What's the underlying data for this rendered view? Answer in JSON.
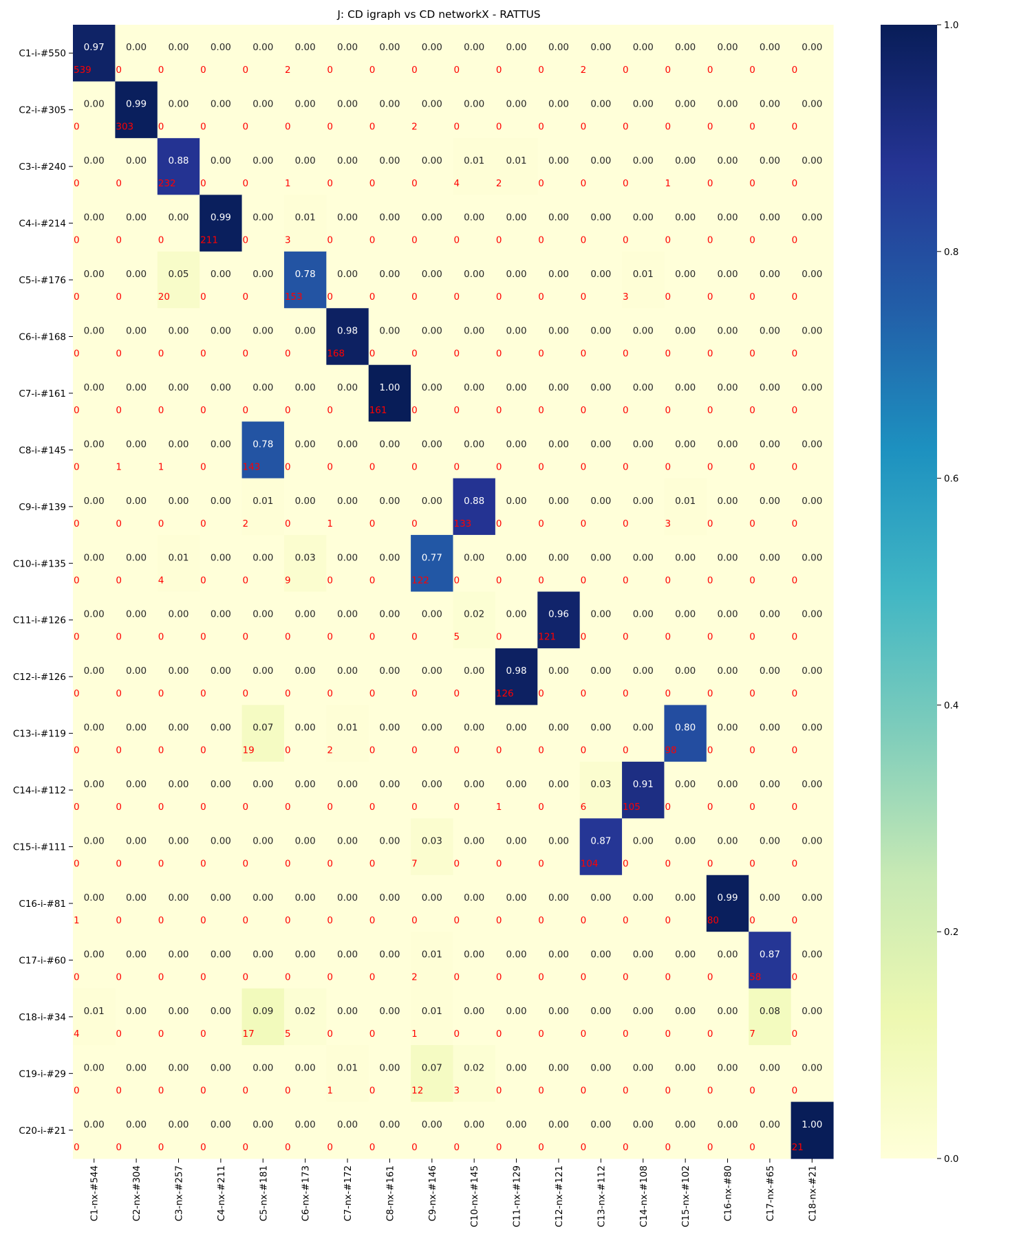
{
  "chart_data": {
    "type": "heatmap",
    "title": "J: CD igraph vs CD networkX - RATTUS",
    "rows": [
      "C1-i-#550",
      "C2-i-#305",
      "C3-i-#240",
      "C4-i-#214",
      "C5-i-#176",
      "C6-i-#168",
      "C7-i-#161",
      "C8-i-#145",
      "C9-i-#139",
      "C10-i-#135",
      "C11-i-#126",
      "C12-i-#126",
      "C13-i-#119",
      "C14-i-#112",
      "C15-i-#111",
      "C16-i-#81",
      "C17-i-#60",
      "C18-i-#34",
      "C19-i-#29",
      "C20-i-#21"
    ],
    "columns": [
      "C1-nx-#544",
      "C2-nx-#304",
      "C3-nx-#257",
      "C4-nx-#211",
      "C5-nx-#181",
      "C6-nx-#173",
      "C7-nx-#172",
      "C8-nx-#161",
      "C9-nx-#146",
      "C10-nx-#145",
      "C11-nx-#129",
      "C12-nx-#121",
      "C13-nx-#112",
      "C14-nx-#108",
      "C15-nx-#102",
      "C16-nx-#80",
      "C17-nx-#65",
      "C18-nx-#21"
    ],
    "values": [
      [
        0.97,
        0,
        0,
        0,
        0,
        0,
        0,
        0,
        0,
        0,
        0,
        0,
        0,
        0,
        0,
        0,
        0,
        0
      ],
      [
        0,
        0.99,
        0,
        0,
        0,
        0,
        0,
        0,
        0,
        0,
        0,
        0,
        0,
        0,
        0,
        0,
        0,
        0
      ],
      [
        0,
        0,
        0.88,
        0,
        0,
        0,
        0,
        0,
        0,
        0.01,
        0.01,
        0,
        0,
        0,
        0,
        0,
        0,
        0
      ],
      [
        0,
        0,
        0,
        0.99,
        0,
        0.01,
        0,
        0,
        0,
        0,
        0,
        0,
        0,
        0,
        0,
        0,
        0,
        0
      ],
      [
        0,
        0,
        0.05,
        0,
        0,
        0.78,
        0,
        0,
        0,
        0,
        0,
        0,
        0,
        0.01,
        0,
        0,
        0,
        0
      ],
      [
        0,
        0,
        0,
        0,
        0,
        0,
        0.98,
        0,
        0,
        0,
        0,
        0,
        0,
        0,
        0,
        0,
        0,
        0
      ],
      [
        0,
        0,
        0,
        0,
        0,
        0,
        0,
        1.0,
        0,
        0,
        0,
        0,
        0,
        0,
        0,
        0,
        0,
        0
      ],
      [
        0,
        0,
        0,
        0,
        0.78,
        0,
        0,
        0,
        0,
        0,
        0,
        0,
        0,
        0,
        0,
        0,
        0,
        0
      ],
      [
        0,
        0,
        0,
        0,
        0.01,
        0,
        0,
        0,
        0,
        0.88,
        0,
        0,
        0,
        0,
        0.01,
        0,
        0,
        0
      ],
      [
        0,
        0,
        0.01,
        0,
        0,
        0.03,
        0,
        0,
        0.77,
        0,
        0,
        0,
        0,
        0,
        0,
        0,
        0,
        0
      ],
      [
        0,
        0,
        0,
        0,
        0,
        0,
        0,
        0,
        0,
        0.02,
        0,
        0.96,
        0,
        0,
        0,
        0,
        0,
        0
      ],
      [
        0,
        0,
        0,
        0,
        0,
        0,
        0,
        0,
        0,
        0,
        0.98,
        0,
        0,
        0,
        0,
        0,
        0,
        0
      ],
      [
        0,
        0,
        0,
        0,
        0.07,
        0,
        0.01,
        0,
        0,
        0,
        0,
        0,
        0,
        0,
        0.8,
        0,
        0,
        0
      ],
      [
        0,
        0,
        0,
        0,
        0,
        0,
        0,
        0,
        0,
        0,
        0,
        0,
        0.03,
        0.91,
        0,
        0,
        0,
        0
      ],
      [
        0,
        0,
        0,
        0,
        0,
        0,
        0,
        0,
        0.03,
        0,
        0,
        0,
        0.87,
        0,
        0,
        0,
        0,
        0
      ],
      [
        0,
        0,
        0,
        0,
        0,
        0,
        0,
        0,
        0,
        0,
        0,
        0,
        0,
        0,
        0,
        0.99,
        0,
        0
      ],
      [
        0,
        0,
        0,
        0,
        0,
        0,
        0,
        0,
        0.01,
        0,
        0,
        0,
        0,
        0,
        0,
        0,
        0.87,
        0
      ],
      [
        0.01,
        0,
        0,
        0,
        0.09,
        0.02,
        0,
        0,
        0.01,
        0,
        0,
        0,
        0,
        0,
        0,
        0,
        0.08,
        0
      ],
      [
        0,
        0,
        0,
        0,
        0,
        0,
        0.01,
        0,
        0.07,
        0.02,
        0,
        0,
        0,
        0,
        0,
        0,
        0,
        0
      ],
      [
        0,
        0,
        0,
        0,
        0,
        0,
        0,
        0,
        0,
        0,
        0,
        0,
        0,
        0,
        0,
        0,
        0,
        1.0
      ]
    ],
    "counts": [
      [
        539,
        0,
        0,
        0,
        0,
        2,
        0,
        0,
        0,
        0,
        0,
        0,
        2,
        0,
        0,
        0,
        0,
        0
      ],
      [
        0,
        303,
        0,
        0,
        0,
        0,
        0,
        0,
        2,
        0,
        0,
        0,
        0,
        0,
        0,
        0,
        0,
        0
      ],
      [
        0,
        0,
        232,
        0,
        0,
        1,
        0,
        0,
        0,
        4,
        2,
        0,
        0,
        0,
        1,
        0,
        0,
        0
      ],
      [
        0,
        0,
        0,
        211,
        0,
        3,
        0,
        0,
        0,
        0,
        0,
        0,
        0,
        0,
        0,
        0,
        0,
        0
      ],
      [
        0,
        0,
        20,
        0,
        0,
        153,
        0,
        0,
        0,
        0,
        0,
        0,
        0,
        3,
        0,
        0,
        0,
        0
      ],
      [
        0,
        0,
        0,
        0,
        0,
        0,
        168,
        0,
        0,
        0,
        0,
        0,
        0,
        0,
        0,
        0,
        0,
        0
      ],
      [
        0,
        0,
        0,
        0,
        0,
        0,
        0,
        161,
        0,
        0,
        0,
        0,
        0,
        0,
        0,
        0,
        0,
        0
      ],
      [
        0,
        1,
        1,
        0,
        143,
        0,
        0,
        0,
        0,
        0,
        0,
        0,
        0,
        0,
        0,
        0,
        0,
        0
      ],
      [
        0,
        0,
        0,
        0,
        2,
        0,
        1,
        0,
        0,
        133,
        0,
        0,
        0,
        0,
        3,
        0,
        0,
        0
      ],
      [
        0,
        0,
        4,
        0,
        0,
        9,
        0,
        0,
        122,
        0,
        0,
        0,
        0,
        0,
        0,
        0,
        0,
        0
      ],
      [
        0,
        0,
        0,
        0,
        0,
        0,
        0,
        0,
        0,
        5,
        0,
        121,
        0,
        0,
        0,
        0,
        0,
        0
      ],
      [
        0,
        0,
        0,
        0,
        0,
        0,
        0,
        0,
        0,
        0,
        126,
        0,
        0,
        0,
        0,
        0,
        0,
        0
      ],
      [
        0,
        0,
        0,
        0,
        19,
        0,
        2,
        0,
        0,
        0,
        0,
        0,
        0,
        0,
        98,
        0,
        0,
        0
      ],
      [
        0,
        0,
        0,
        0,
        0,
        0,
        0,
        0,
        0,
        0,
        1,
        0,
        6,
        105,
        0,
        0,
        0,
        0
      ],
      [
        0,
        0,
        0,
        0,
        0,
        0,
        0,
        0,
        7,
        0,
        0,
        0,
        104,
        0,
        0,
        0,
        0,
        0
      ],
      [
        1,
        0,
        0,
        0,
        0,
        0,
        0,
        0,
        0,
        0,
        0,
        0,
        0,
        0,
        0,
        80,
        0,
        0
      ],
      [
        0,
        0,
        0,
        0,
        0,
        0,
        0,
        0,
        2,
        0,
        0,
        0,
        0,
        0,
        0,
        0,
        58,
        0
      ],
      [
        4,
        0,
        0,
        0,
        17,
        5,
        0,
        0,
        1,
        0,
        0,
        0,
        0,
        0,
        0,
        0,
        7,
        0
      ],
      [
        0,
        0,
        0,
        0,
        0,
        0,
        1,
        0,
        12,
        3,
        0,
        0,
        0,
        0,
        0,
        0,
        0,
        0
      ],
      [
        0,
        0,
        0,
        0,
        0,
        0,
        0,
        0,
        0,
        0,
        0,
        0,
        0,
        0,
        0,
        0,
        0,
        21
      ]
    ],
    "colorbar": {
      "colormap": "YlGnBu",
      "range": [
        0,
        1
      ],
      "ticks": [
        "0.0",
        "0.2",
        "0.4",
        "0.6",
        "0.8",
        "1.0"
      ]
    },
    "colors": {
      "count_label": "#ff0000",
      "label_dark_bg": "#ffffff",
      "label_light_bg": "#262626"
    }
  }
}
